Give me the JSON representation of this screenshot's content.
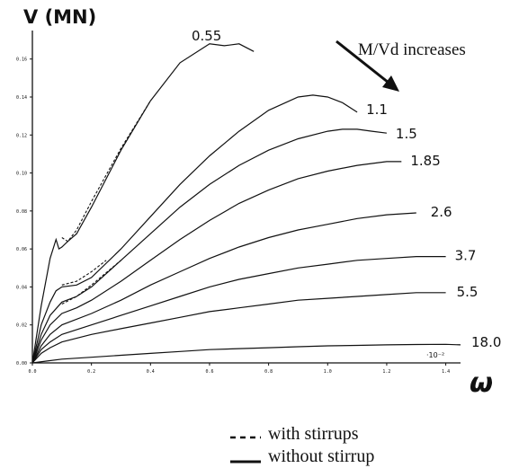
{
  "chart_data": {
    "type": "line",
    "ylabel": "V (MN)",
    "xlabel": "ω",
    "x_multiplier_label": "·10⁻²",
    "annotation": "M/Vd increases",
    "xlim": [
      0,
      1.45
    ],
    "ylim": [
      0,
      0.175
    ],
    "x_ticks": [
      "0.0",
      "0.2",
      "0.4",
      "0.6",
      "0.8",
      "1.0",
      "1.2",
      "1.4"
    ],
    "y_ticks": [
      "0.00",
      "0.02",
      "0.04",
      "0.06",
      "0.08",
      "0.10",
      "0.12",
      "0.14",
      "0.16"
    ],
    "legend": {
      "dashed_label": "with stirrups",
      "solid_label": "without stirrup"
    },
    "series": [
      {
        "name": "0.55",
        "style": "solid",
        "x": [
          0,
          0.03,
          0.06,
          0.08,
          0.09,
          0.1,
          0.12,
          0.15,
          0.2,
          0.3,
          0.4,
          0.5,
          0.6,
          0.65,
          0.7,
          0.75
        ],
        "y": [
          0,
          0.03,
          0.055,
          0.065,
          0.06,
          0.061,
          0.064,
          0.068,
          0.082,
          0.112,
          0.138,
          0.158,
          0.168,
          0.167,
          0.168,
          0.164
        ]
      },
      {
        "name": "0.55",
        "style": "dashed",
        "x": [
          0.1,
          0.12,
          0.15,
          0.2,
          0.3,
          0.4
        ],
        "y": [
          0.066,
          0.064,
          0.07,
          0.085,
          0.113,
          0.138
        ]
      },
      {
        "name": "1.1",
        "style": "solid",
        "x": [
          0,
          0.03,
          0.06,
          0.08,
          0.1,
          0.15,
          0.2,
          0.3,
          0.4,
          0.5,
          0.6,
          0.7,
          0.8,
          0.9,
          0.95,
          1.0,
          1.05,
          1.1
        ],
        "y": [
          0,
          0.02,
          0.032,
          0.038,
          0.04,
          0.041,
          0.045,
          0.06,
          0.077,
          0.094,
          0.109,
          0.122,
          0.133,
          0.14,
          0.141,
          0.14,
          0.137,
          0.132
        ]
      },
      {
        "name": "1.1",
        "style": "dashed",
        "x": [
          0.1,
          0.15,
          0.2,
          0.25
        ],
        "y": [
          0.041,
          0.043,
          0.048,
          0.054
        ]
      },
      {
        "name": "1.5",
        "style": "solid",
        "x": [
          0,
          0.03,
          0.06,
          0.1,
          0.15,
          0.2,
          0.3,
          0.4,
          0.5,
          0.6,
          0.7,
          0.8,
          0.9,
          1.0,
          1.05,
          1.1,
          1.15,
          1.2
        ],
        "y": [
          0,
          0.015,
          0.025,
          0.032,
          0.035,
          0.04,
          0.054,
          0.068,
          0.082,
          0.094,
          0.104,
          0.112,
          0.118,
          0.122,
          0.123,
          0.123,
          0.122,
          0.121
        ]
      },
      {
        "name": "1.5",
        "style": "dashed",
        "x": [
          0.1,
          0.15,
          0.2,
          0.3
        ],
        "y": [
          0.031,
          0.035,
          0.041,
          0.054
        ]
      },
      {
        "name": "1.85",
        "style": "solid",
        "x": [
          0,
          0.03,
          0.06,
          0.1,
          0.15,
          0.2,
          0.3,
          0.4,
          0.5,
          0.6,
          0.7,
          0.8,
          0.9,
          1.0,
          1.1,
          1.2,
          1.25
        ],
        "y": [
          0,
          0.012,
          0.02,
          0.026,
          0.029,
          0.033,
          0.043,
          0.054,
          0.065,
          0.075,
          0.084,
          0.091,
          0.097,
          0.101,
          0.104,
          0.106,
          0.106
        ]
      },
      {
        "name": "2.6",
        "style": "solid",
        "x": [
          0,
          0.03,
          0.06,
          0.1,
          0.2,
          0.3,
          0.4,
          0.5,
          0.6,
          0.7,
          0.8,
          0.9,
          1.0,
          1.1,
          1.2,
          1.3
        ],
        "y": [
          0,
          0.009,
          0.015,
          0.02,
          0.026,
          0.033,
          0.041,
          0.048,
          0.055,
          0.061,
          0.066,
          0.07,
          0.073,
          0.076,
          0.078,
          0.079
        ]
      },
      {
        "name": "3.7",
        "style": "solid",
        "x": [
          0,
          0.03,
          0.06,
          0.1,
          0.2,
          0.3,
          0.4,
          0.5,
          0.6,
          0.7,
          0.8,
          0.9,
          1.0,
          1.1,
          1.2,
          1.3,
          1.4
        ],
        "y": [
          0,
          0.007,
          0.011,
          0.015,
          0.02,
          0.025,
          0.03,
          0.035,
          0.04,
          0.044,
          0.047,
          0.05,
          0.052,
          0.054,
          0.055,
          0.056,
          0.056
        ]
      },
      {
        "name": "5.5",
        "style": "solid",
        "x": [
          0,
          0.03,
          0.06,
          0.1,
          0.2,
          0.3,
          0.4,
          0.5,
          0.6,
          0.7,
          0.8,
          0.9,
          1.0,
          1.1,
          1.2,
          1.3,
          1.4
        ],
        "y": [
          0,
          0.005,
          0.008,
          0.011,
          0.015,
          0.018,
          0.021,
          0.024,
          0.027,
          0.029,
          0.031,
          0.033,
          0.034,
          0.035,
          0.036,
          0.037,
          0.037
        ]
      },
      {
        "name": "18.0",
        "style": "solid",
        "x": [
          0,
          0.05,
          0.1,
          0.2,
          0.3,
          0.4,
          0.5,
          0.6,
          0.7,
          0.8,
          0.9,
          1.0,
          1.1,
          1.2,
          1.3,
          1.4,
          1.45
        ],
        "y": [
          0,
          0.001,
          0.002,
          0.003,
          0.004,
          0.005,
          0.006,
          0.007,
          0.0075,
          0.008,
          0.0085,
          0.009,
          0.0092,
          0.0095,
          0.0097,
          0.0098,
          0.0095
        ]
      }
    ]
  }
}
